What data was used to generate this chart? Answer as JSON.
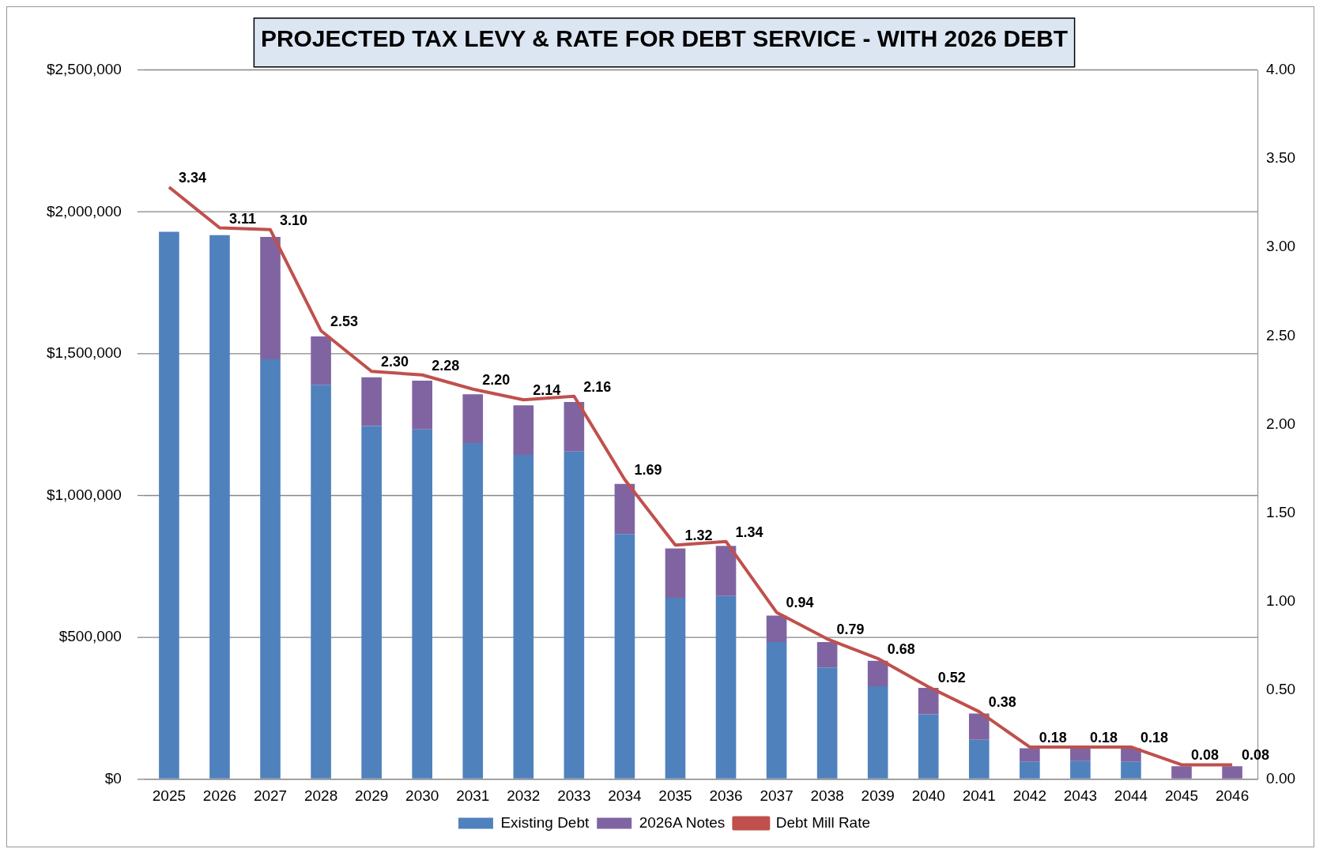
{
  "chart_data": {
    "type": "bar",
    "title": "PROJECTED TAX LEVY & RATE FOR DEBT SERVICE - WITH 2026 DEBT",
    "stacked": true,
    "grid": "y",
    "legend": "bottom",
    "categories": [
      "2025",
      "2026",
      "2027",
      "2028",
      "2029",
      "2030",
      "2031",
      "2032",
      "2033",
      "2034",
      "2035",
      "2036",
      "2037",
      "2038",
      "2039",
      "2040",
      "2041",
      "2042",
      "2043",
      "2044",
      "2045",
      "2046"
    ],
    "series": [
      {
        "name": "Existing Debt",
        "color": "#4f81bd",
        "values": [
          1930000,
          1918000,
          1480000,
          1390000,
          1245000,
          1233000,
          1185000,
          1143000,
          1155000,
          864000,
          639000,
          645000,
          483000,
          393000,
          327000,
          228000,
          138000,
          60000,
          63000,
          60000,
          0,
          0
        ]
      },
      {
        "name": "2026A Notes",
        "color": "#8064a2",
        "values": [
          0,
          0,
          432000,
          171000,
          172000,
          172000,
          172000,
          175000,
          175000,
          177000,
          174000,
          177000,
          93000,
          90000,
          90000,
          93000,
          93000,
          48000,
          45000,
          48000,
          45000,
          45000
        ]
      },
      {
        "name": "Debt Mill Rate",
        "type": "line",
        "axis": "y2",
        "color": "#c0504d",
        "marker": "none",
        "values": [
          3.34,
          3.11,
          3.1,
          2.53,
          2.3,
          2.28,
          2.2,
          2.14,
          2.16,
          1.69,
          1.32,
          1.34,
          0.94,
          0.79,
          0.68,
          0.52,
          0.38,
          0.18,
          0.18,
          0.18,
          0.08,
          0.08
        ],
        "value_labels": [
          "3.34",
          "3.11",
          "3.10",
          "2.53",
          "2.30",
          "2.28",
          "2.20",
          "2.14",
          "2.16",
          "1.69",
          "1.32",
          "1.34",
          "0.94",
          "0.79",
          "0.68",
          "0.52",
          "0.38",
          "0.18",
          "0.18",
          "0.18",
          "0.08",
          "0.08"
        ]
      }
    ],
    "ylim": [
      0,
      2500000
    ],
    "yticks": [
      {
        "value": 0,
        "label": "$0"
      },
      {
        "value": 500000,
        "label": "$500,000"
      },
      {
        "value": 1000000,
        "label": "$1,000,000"
      },
      {
        "value": 1500000,
        "label": "$1,500,000"
      },
      {
        "value": 2000000,
        "label": "$2,000,000"
      },
      {
        "value": 2500000,
        "label": "$2,500,000"
      }
    ],
    "y2lim": [
      0,
      4
    ],
    "y2ticks": [
      {
        "value": 0,
        "label": "0.00"
      },
      {
        "value": 0.5,
        "label": "0.50"
      },
      {
        "value": 1,
        "label": "1.00"
      },
      {
        "value": 1.5,
        "label": "1.50"
      },
      {
        "value": 2,
        "label": "2.00"
      },
      {
        "value": 2.5,
        "label": "2.50"
      },
      {
        "value": 3,
        "label": "3.00"
      },
      {
        "value": 3.5,
        "label": "3.50"
      },
      {
        "value": 4,
        "label": "4.00"
      }
    ]
  }
}
